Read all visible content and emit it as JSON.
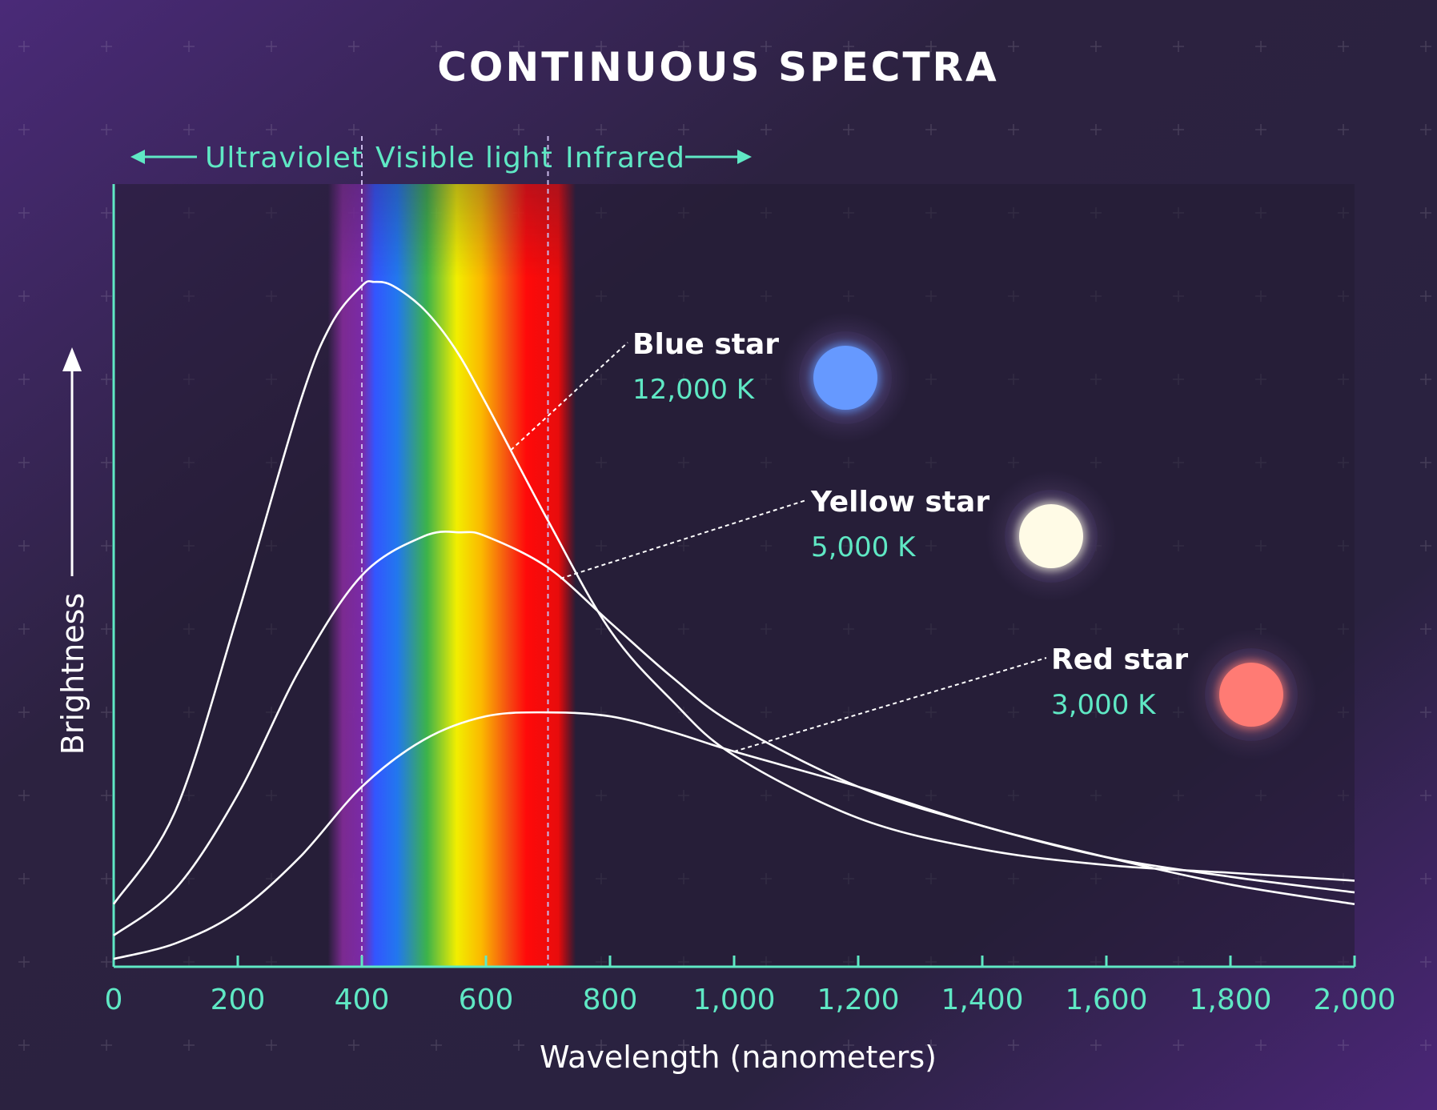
{
  "chart_data": {
    "type": "line",
    "title": "CONTINUOUS SPECTRA",
    "xlabel": "Wavelength (nanometers)",
    "ylabel": "Brightness",
    "xlim": [
      0,
      2000
    ],
    "x_ticks": [
      "0",
      "200",
      "400",
      "600",
      "800",
      "1,000",
      "1,200",
      "1,400",
      "1,600",
      "1,800",
      "2,000"
    ],
    "x_tick_values": [
      0,
      200,
      400,
      600,
      800,
      1000,
      1200,
      1400,
      1600,
      1800,
      2000
    ],
    "y_ticks_shown": false,
    "regions": [
      {
        "label": "Ultraviolet",
        "range": [
          0,
          400
        ]
      },
      {
        "label": "Visible light",
        "range": [
          400,
          700
        ]
      },
      {
        "label": "Infrared",
        "range": [
          700,
          2000
        ]
      }
    ],
    "boundaries": [
      400,
      700
    ],
    "series": [
      {
        "name": "Blue star",
        "temperature": "12,000 K",
        "color": "#ffffff",
        "star_color": "#6699ff",
        "x": [
          0,
          100,
          200,
          300,
          350,
          400,
          420,
          450,
          500,
          550,
          600,
          700,
          800,
          900,
          1000,
          1200,
          1400,
          1600,
          1800,
          2000
        ],
        "y": [
          0.08,
          0.2,
          0.45,
          0.72,
          0.82,
          0.87,
          0.875,
          0.87,
          0.84,
          0.79,
          0.72,
          0.57,
          0.43,
          0.34,
          0.27,
          0.19,
          0.15,
          0.13,
          0.12,
          0.11
        ]
      },
      {
        "name": "Yellow star",
        "temperature": "5,000 K",
        "color": "#ffffff",
        "star_color": "#fffbe6",
        "x": [
          0,
          100,
          200,
          300,
          400,
          500,
          560,
          600,
          700,
          800,
          900,
          1000,
          1200,
          1400,
          1600,
          1800,
          2000
        ],
        "y": [
          0.04,
          0.1,
          0.22,
          0.38,
          0.5,
          0.55,
          0.555,
          0.55,
          0.51,
          0.44,
          0.37,
          0.31,
          0.23,
          0.18,
          0.14,
          0.115,
          0.095
        ]
      },
      {
        "name": "Red star",
        "temperature": "3,000 K",
        "color": "#ffffff",
        "star_color": "#ff7b74",
        "x": [
          0,
          100,
          200,
          300,
          400,
          500,
          600,
          700,
          800,
          900,
          1000,
          1200,
          1400,
          1600,
          1800,
          2000
        ],
        "y": [
          0.01,
          0.03,
          0.07,
          0.14,
          0.23,
          0.29,
          0.32,
          0.325,
          0.32,
          0.3,
          0.275,
          0.23,
          0.18,
          0.14,
          0.105,
          0.08
        ]
      }
    ]
  },
  "colors": {
    "accent": "#5fe8c4",
    "background": "#241d33"
  },
  "icons": [
    "arrow-left-icon",
    "arrow-right-icon",
    "arrow-up-icon"
  ]
}
